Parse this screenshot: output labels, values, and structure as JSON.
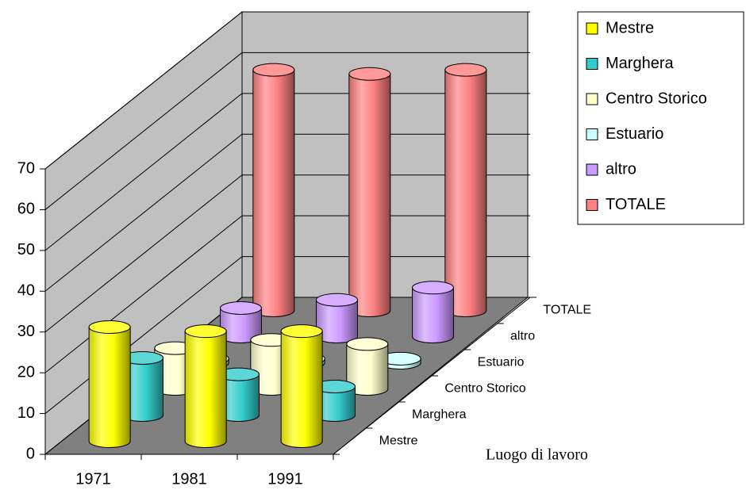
{
  "chart_data": {
    "type": "cylinder3d",
    "categories": [
      "1971",
      "1981",
      "1991"
    ],
    "series": [
      {
        "name": "Mestre",
        "color": "#ffff00",
        "values": [
          28,
          27,
          27
        ]
      },
      {
        "name": "Marghera",
        "color": "#33cccc",
        "values": [
          14,
          10,
          7
        ]
      },
      {
        "name": "Centro Storico",
        "color": "#ffffcc",
        "values": [
          10,
          12,
          11
        ]
      },
      {
        "name": "Estuario",
        "color": "#ccffff",
        "values": [
          1,
          1,
          1
        ]
      },
      {
        "name": "altro",
        "color": "#cc99ff",
        "values": [
          7,
          9,
          12
        ]
      },
      {
        "name": "TOTALE",
        "color": "#ff8080",
        "values": [
          59,
          58,
          59
        ]
      }
    ],
    "z_label": "Luogo di lavoro",
    "ylim": [
      0,
      70
    ],
    "yticks": [
      0,
      10,
      20,
      30,
      40,
      50,
      60,
      70
    ],
    "grid": true,
    "legend": "top-right"
  }
}
